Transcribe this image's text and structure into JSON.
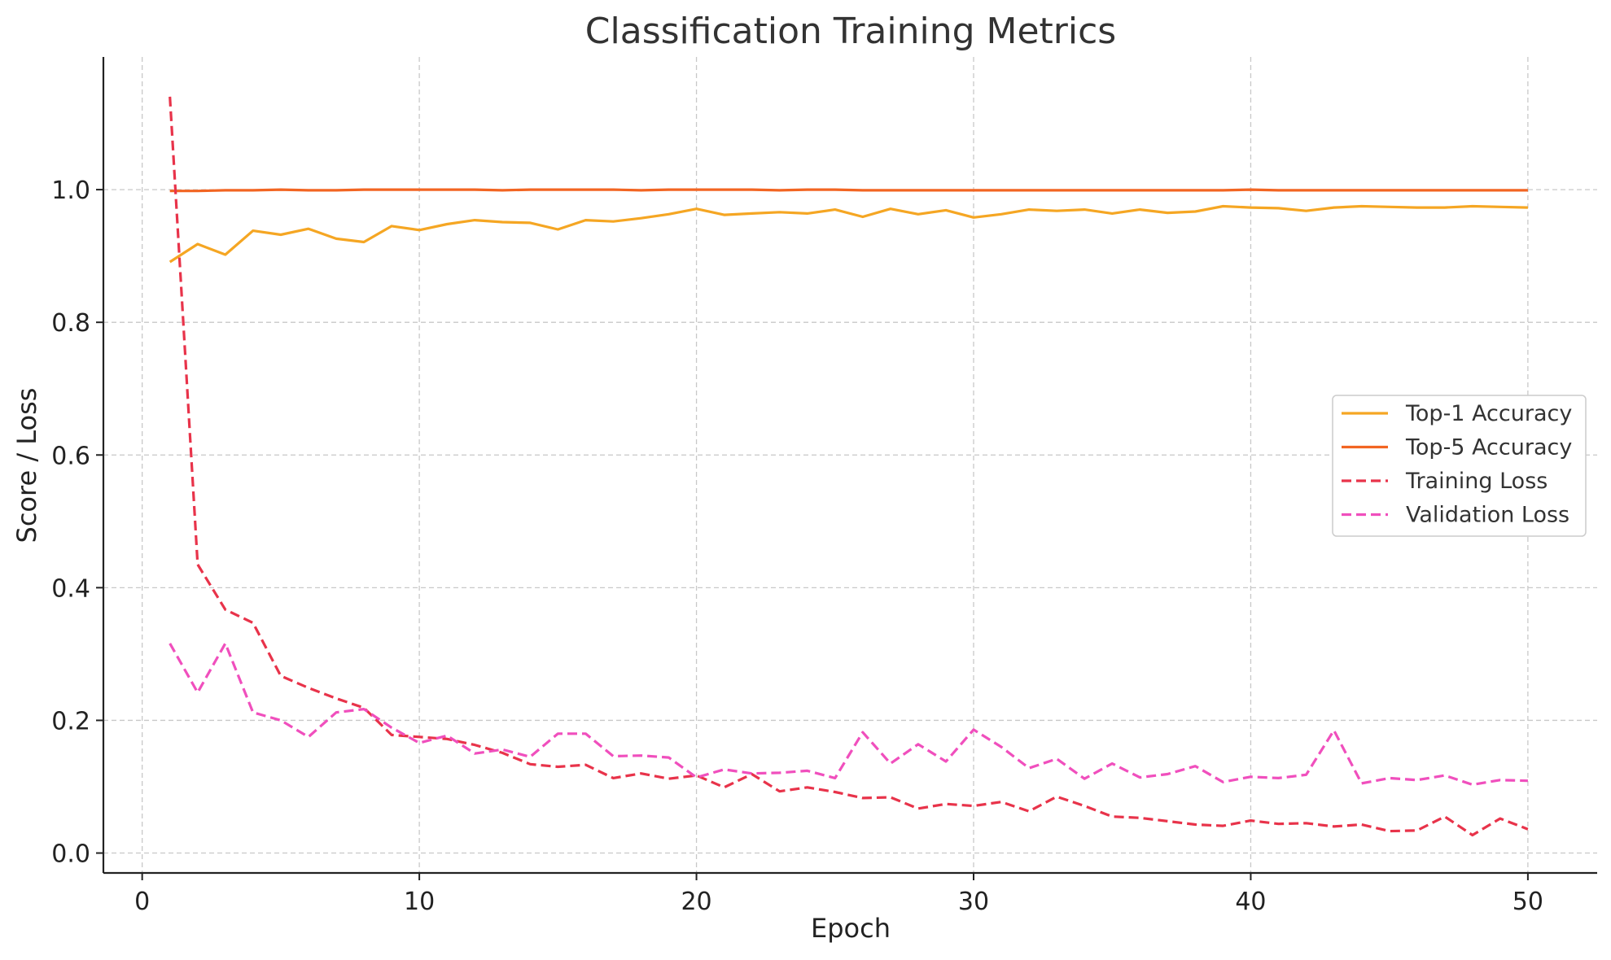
{
  "chart_data": {
    "type": "line",
    "title": "Classification Training Metrics",
    "xlabel": "Epoch",
    "ylabel": "Score / Loss",
    "xlim": [
      -1.4,
      52.5
    ],
    "ylim": [
      -0.03,
      1.2
    ],
    "xticks": [
      0,
      10,
      20,
      30,
      40,
      50
    ],
    "yticks": [
      0.0,
      0.2,
      0.4,
      0.6,
      0.8,
      1.0
    ],
    "xtick_labels": [
      "0",
      "10",
      "20",
      "30",
      "40",
      "50"
    ],
    "ytick_labels": [
      "0.0",
      "0.2",
      "0.4",
      "0.6",
      "0.8",
      "1.0"
    ],
    "grid": true,
    "legend_position": "center-right",
    "x": [
      1,
      2,
      3,
      4,
      5,
      6,
      7,
      8,
      9,
      10,
      11,
      12,
      13,
      14,
      15,
      16,
      17,
      18,
      19,
      20,
      21,
      22,
      23,
      24,
      25,
      26,
      27,
      28,
      29,
      30,
      31,
      32,
      33,
      34,
      35,
      36,
      37,
      38,
      39,
      40,
      41,
      42,
      43,
      44,
      45,
      46,
      47,
      48,
      49,
      50
    ],
    "series": [
      {
        "name": "Top-1 Accuracy",
        "color": "#f5a623",
        "style": "solid",
        "values": [
          0.891,
          0.918,
          0.902,
          0.938,
          0.932,
          0.941,
          0.926,
          0.921,
          0.945,
          0.939,
          0.948,
          0.954,
          0.951,
          0.95,
          0.94,
          0.954,
          0.952,
          0.957,
          0.963,
          0.971,
          0.962,
          0.964,
          0.966,
          0.964,
          0.97,
          0.959,
          0.971,
          0.963,
          0.969,
          0.958,
          0.963,
          0.97,
          0.968,
          0.97,
          0.964,
          0.97,
          0.965,
          0.967,
          0.975,
          0.973,
          0.972,
          0.968,
          0.973,
          0.975,
          0.974,
          0.973,
          0.973,
          0.975,
          0.974,
          0.973
        ]
      },
      {
        "name": "Top-5 Accuracy",
        "color": "#f26522",
        "style": "solid",
        "values": [
          0.998,
          0.998,
          0.999,
          0.999,
          1.0,
          0.999,
          0.999,
          1.0,
          1.0,
          1.0,
          1.0,
          1.0,
          0.999,
          1.0,
          1.0,
          1.0,
          1.0,
          0.999,
          1.0,
          1.0,
          1.0,
          1.0,
          0.999,
          1.0,
          1.0,
          0.999,
          0.999,
          0.999,
          0.999,
          0.999,
          0.999,
          0.999,
          0.999,
          0.999,
          0.999,
          0.999,
          0.999,
          0.999,
          0.999,
          1.0,
          0.999,
          0.999,
          0.999,
          0.999,
          0.999,
          0.999,
          0.999,
          0.999,
          0.999,
          0.999
        ]
      },
      {
        "name": "Training Loss",
        "color": "#e8334a",
        "style": "dashed",
        "values": [
          1.14,
          0.435,
          0.367,
          0.347,
          0.267,
          0.249,
          0.233,
          0.219,
          0.178,
          0.175,
          0.172,
          0.163,
          0.151,
          0.134,
          0.13,
          0.133,
          0.113,
          0.12,
          0.112,
          0.117,
          0.099,
          0.119,
          0.093,
          0.099,
          0.092,
          0.083,
          0.084,
          0.067,
          0.074,
          0.071,
          0.077,
          0.063,
          0.085,
          0.071,
          0.055,
          0.053,
          0.048,
          0.043,
          0.041,
          0.049,
          0.044,
          0.045,
          0.04,
          0.043,
          0.033,
          0.034,
          0.055,
          0.027,
          0.052,
          0.036
        ]
      },
      {
        "name": "Validation Loss",
        "color": "#f04fbd",
        "style": "dashed",
        "values": [
          0.316,
          0.242,
          0.316,
          0.212,
          0.2,
          0.175,
          0.212,
          0.217,
          0.189,
          0.166,
          0.177,
          0.15,
          0.156,
          0.145,
          0.18,
          0.18,
          0.146,
          0.147,
          0.144,
          0.114,
          0.126,
          0.12,
          0.121,
          0.124,
          0.113,
          0.182,
          0.135,
          0.164,
          0.138,
          0.186,
          0.16,
          0.128,
          0.142,
          0.112,
          0.135,
          0.114,
          0.119,
          0.131,
          0.107,
          0.115,
          0.113,
          0.118,
          0.185,
          0.105,
          0.113,
          0.11,
          0.117,
          0.103,
          0.11,
          0.109
        ]
      }
    ]
  }
}
